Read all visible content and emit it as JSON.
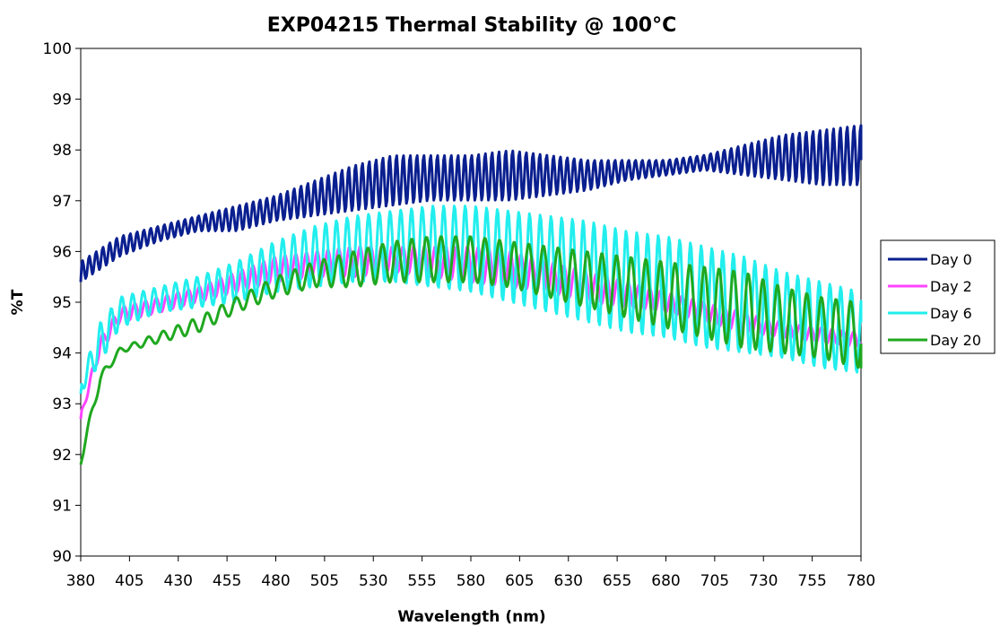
{
  "chart_data": {
    "type": "line",
    "title": "EXP04215 Thermal Stability @ 100°C",
    "xlabel": "Wavelength (nm)",
    "ylabel": "%T",
    "xlim": [
      380,
      780
    ],
    "ylim": [
      90,
      100
    ],
    "xticks": [
      380,
      405,
      430,
      455,
      480,
      505,
      530,
      555,
      580,
      605,
      630,
      655,
      680,
      705,
      730,
      755,
      780
    ],
    "yticks": [
      90,
      91,
      92,
      93,
      94,
      95,
      96,
      97,
      98,
      99,
      100
    ],
    "grid": false,
    "legend_position": "right",
    "series": [
      {
        "name": "Day 0",
        "color": "#0a1f8f",
        "x": [
          380,
          400,
          420,
          440,
          460,
          480,
          500,
          520,
          540,
          560,
          580,
          600,
          620,
          640,
          660,
          680,
          700,
          720,
          740,
          760,
          780
        ],
        "y_low": [
          95.4,
          95.9,
          96.2,
          96.4,
          96.4,
          96.6,
          96.7,
          96.8,
          96.9,
          97.0,
          97.0,
          97.0,
          97.1,
          97.2,
          97.4,
          97.5,
          97.6,
          97.5,
          97.4,
          97.3,
          97.3
        ],
        "y_high": [
          95.8,
          96.3,
          96.5,
          96.7,
          96.9,
          97.1,
          97.4,
          97.7,
          97.9,
          97.9,
          97.9,
          98.0,
          97.9,
          97.8,
          97.8,
          97.8,
          97.9,
          98.1,
          98.3,
          98.4,
          98.5
        ],
        "period": 3.5,
        "end_value": 97.8
      },
      {
        "name": "Day 2",
        "color": "#ff44ff",
        "x": [
          380,
          390,
          400,
          420,
          440,
          460,
          480,
          500,
          520,
          540,
          560,
          580,
          600,
          620,
          640,
          660,
          680,
          700,
          720,
          740,
          760,
          780
        ],
        "y_low": [
          92.7,
          94.0,
          94.6,
          94.8,
          95.0,
          95.2,
          95.4,
          95.5,
          95.5,
          95.6,
          95.5,
          95.4,
          95.3,
          95.2,
          95.0,
          94.9,
          94.8,
          94.6,
          94.4,
          94.3,
          94.2,
          94.1
        ],
        "y_high": [
          92.8,
          94.3,
          94.9,
          95.1,
          95.3,
          95.6,
          95.9,
          96.0,
          96.1,
          96.1,
          96.1,
          96.1,
          96.0,
          95.8,
          95.6,
          95.4,
          95.2,
          95.0,
          94.8,
          94.6,
          94.5,
          94.4
        ],
        "period": 5.5,
        "end_value": 94.1
      },
      {
        "name": "Day 6",
        "color": "#22eeee",
        "x": [
          380,
          390,
          400,
          420,
          440,
          460,
          480,
          500,
          520,
          540,
          560,
          580,
          600,
          620,
          640,
          660,
          680,
          700,
          720,
          740,
          760,
          780
        ],
        "y_low": [
          93.2,
          93.8,
          94.5,
          94.8,
          94.9,
          95.0,
          95.2,
          95.3,
          95.4,
          95.4,
          95.3,
          95.2,
          95.0,
          94.8,
          94.6,
          94.4,
          94.3,
          94.1,
          94.0,
          93.9,
          93.7,
          93.6
        ],
        "y_high": [
          93.5,
          94.6,
          95.1,
          95.3,
          95.5,
          95.8,
          96.2,
          96.5,
          96.7,
          96.8,
          96.9,
          96.9,
          96.8,
          96.7,
          96.6,
          96.4,
          96.3,
          96.1,
          95.9,
          95.6,
          95.4,
          95.2
        ],
        "period": 5.5,
        "end_value": 94.6
      },
      {
        "name": "Day 20",
        "color": "#1fa81f",
        "x": [
          380,
          390,
          400,
          420,
          440,
          460,
          480,
          500,
          520,
          540,
          560,
          580,
          600,
          620,
          640,
          660,
          680,
          700,
          720,
          740,
          760,
          780
        ],
        "y_low": [
          91.8,
          93.4,
          94.0,
          94.2,
          94.4,
          94.8,
          95.1,
          95.3,
          95.3,
          95.4,
          95.4,
          95.4,
          95.3,
          95.1,
          94.9,
          94.7,
          94.5,
          94.3,
          94.1,
          94.0,
          93.9,
          93.7
        ],
        "y_high": [
          92.0,
          93.6,
          94.1,
          94.4,
          94.7,
          95.1,
          95.5,
          95.8,
          96.0,
          96.2,
          96.3,
          96.3,
          96.2,
          96.1,
          96.0,
          95.9,
          95.8,
          95.7,
          95.6,
          95.3,
          95.1,
          95.0
        ],
        "period": 7.5,
        "end_value": 93.7
      }
    ]
  }
}
